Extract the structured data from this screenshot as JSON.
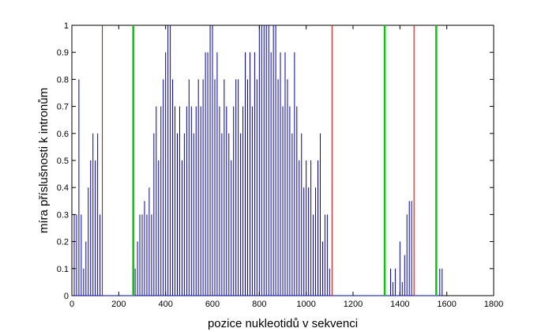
{
  "chart_data": {
    "type": "stem",
    "xlabel": "pozice nukleotidů v sekvenci",
    "ylabel": "míra příslušnosti k intronům",
    "color": "#0000b4",
    "x": [
      10,
      20,
      30,
      40,
      50,
      60,
      70,
      80,
      90,
      100,
      110,
      120,
      270,
      280,
      290,
      300,
      310,
      320,
      330,
      340,
      350,
      360,
      370,
      380,
      390,
      400,
      410,
      420,
      430,
      440,
      450,
      460,
      470,
      480,
      490,
      500,
      510,
      520,
      530,
      540,
      550,
      560,
      570,
      580,
      590,
      600,
      610,
      620,
      630,
      640,
      650,
      660,
      670,
      680,
      690,
      700,
      710,
      720,
      730,
      740,
      750,
      760,
      770,
      780,
      790,
      800,
      810,
      820,
      830,
      840,
      850,
      860,
      870,
      880,
      890,
      900,
      910,
      920,
      930,
      940,
      950,
      960,
      970,
      980,
      990,
      1000,
      1010,
      1020,
      1030,
      1040,
      1050,
      1060,
      1070,
      1080,
      1090,
      1100,
      1360,
      1370,
      1380,
      1400,
      1410,
      1420,
      1430,
      1440,
      1450,
      1570,
      1580
    ],
    "values": [
      0.3,
      0.3,
      0.8,
      0.3,
      0.1,
      0.2,
      0.4,
      0.5,
      0.6,
      0.5,
      0.6,
      0.3,
      0.1,
      0.2,
      0.3,
      0.3,
      0.35,
      0.3,
      0.4,
      0.3,
      0.6,
      0.7,
      0.5,
      0.7,
      0.8,
      0.9,
      1,
      1,
      0.8,
      0.7,
      0.6,
      0.7,
      0.5,
      0.6,
      0.7,
      0.8,
      0.7,
      0.6,
      0.7,
      0.8,
      0.7,
      0.8,
      0.9,
      0.9,
      1,
      1,
      0.8,
      0.9,
      0.7,
      0.6,
      0.8,
      0.7,
      0.6,
      0.5,
      0.7,
      0.8,
      0.8,
      0.6,
      0.7,
      0.9,
      0.8,
      0.9,
      0.7,
      0.9,
      0.8,
      1,
      1,
      1,
      1,
      1,
      0.9,
      1,
      1,
      0.8,
      0.9,
      0.7,
      0.9,
      0.8,
      0.7,
      0.6,
      0.9,
      0.7,
      0.5,
      0.6,
      0.4,
      0.5,
      0.4,
      0.5,
      0.3,
      0.4,
      0.5,
      0.6,
      0.2,
      0.3,
      0.3,
      0.1,
      0.1,
      0.05,
      0.1,
      0.2,
      0.05,
      0.15,
      0.3,
      0.35,
      0.35,
      0.1,
      0.1
    ],
    "boundaries": [
      {
        "x": 130,
        "color": "#cc0000"
      },
      {
        "x": 262,
        "color": "#00cc00"
      },
      {
        "x": 1110,
        "color": "#cc0000"
      },
      {
        "x": 1335,
        "color": "#00cc00"
      },
      {
        "x": 1460,
        "color": "#cc0000"
      },
      {
        "x": 1555,
        "color": "#00cc00"
      }
    ],
    "xlim": [
      0,
      1800
    ],
    "xticks": [
      0,
      200,
      400,
      600,
      800,
      1000,
      1200,
      1400,
      1600,
      1800
    ],
    "ylim": [
      0,
      1
    ],
    "yticks": [
      0,
      0.1,
      0.2,
      0.3,
      0.4,
      0.5,
      0.6,
      0.7,
      0.8,
      0.9,
      1
    ]
  }
}
